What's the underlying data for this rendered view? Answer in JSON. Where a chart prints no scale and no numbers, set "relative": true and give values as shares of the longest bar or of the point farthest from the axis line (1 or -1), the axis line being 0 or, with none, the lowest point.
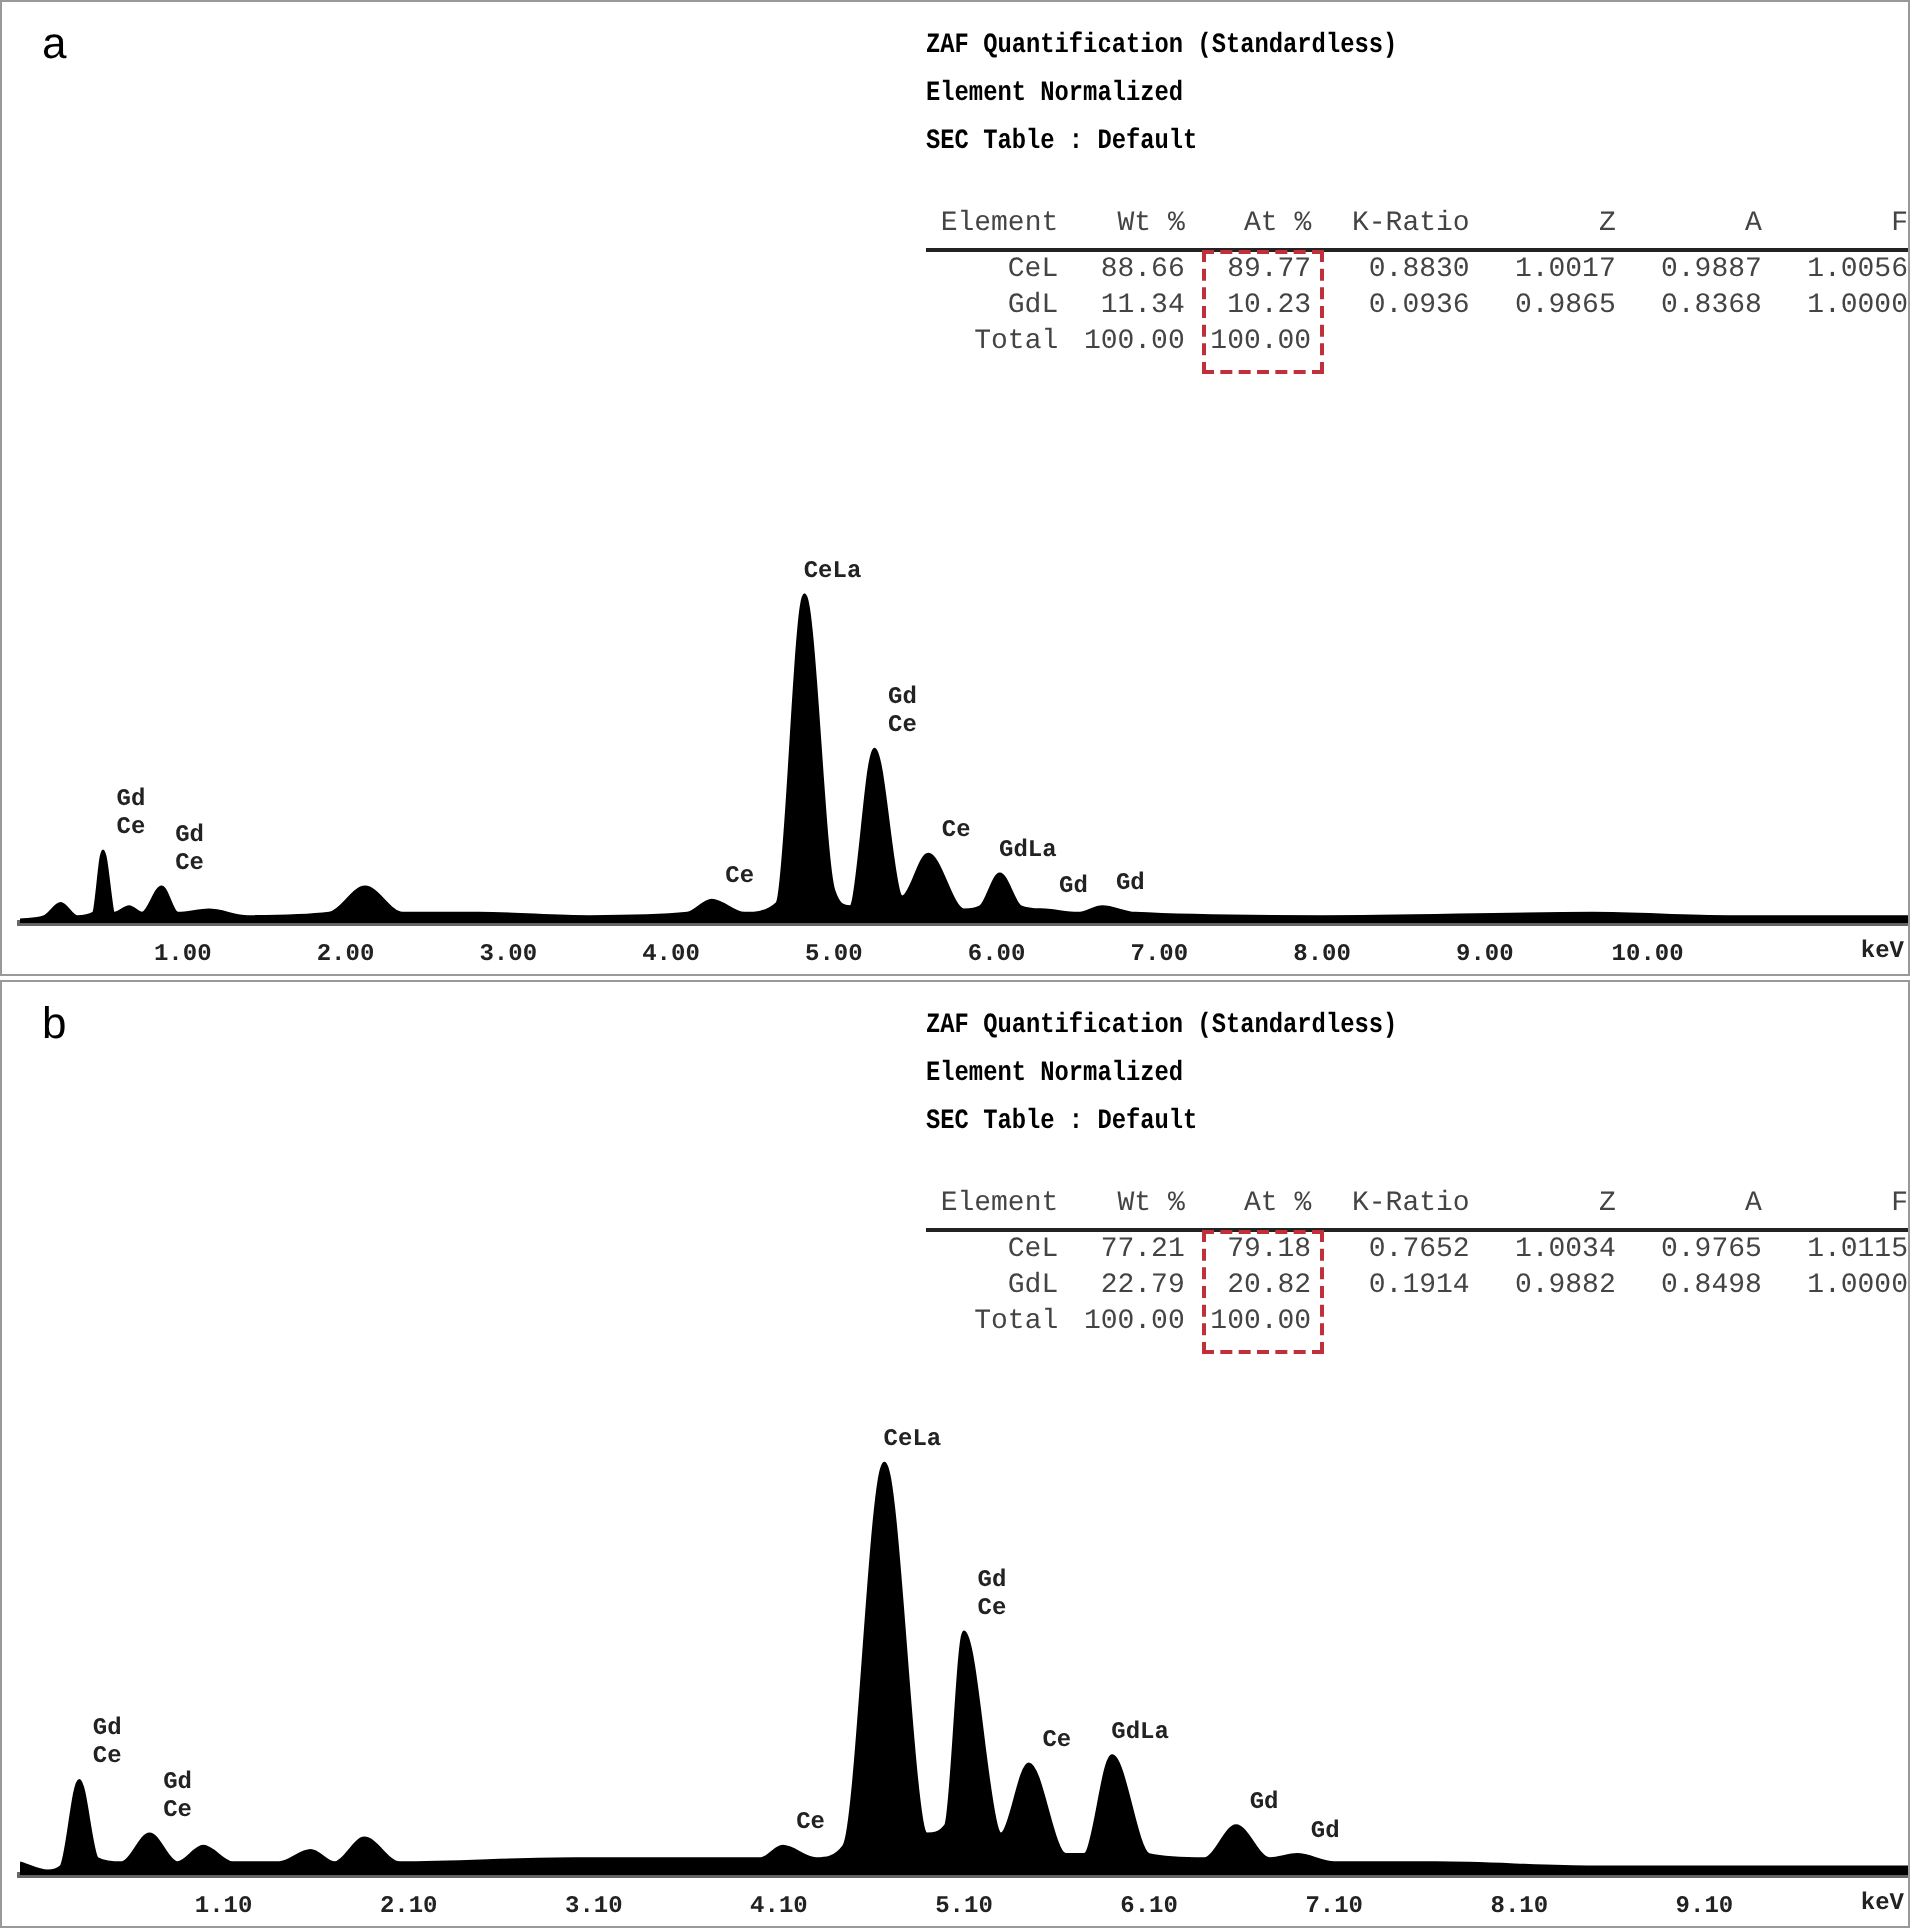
{
  "chart_data": [
    {
      "type": "area",
      "title": "a",
      "xlabel": "keV",
      "relative": true,
      "grid": false,
      "legend": false,
      "marker": "none",
      "xlim": [
        0,
        11.6
      ],
      "xticks": [
        {
          "value": 1,
          "label": "1.00"
        },
        {
          "value": 2,
          "label": "2.00"
        },
        {
          "value": 3,
          "label": "3.00"
        },
        {
          "value": 4,
          "label": "4.00"
        },
        {
          "value": 5,
          "label": "5.00"
        },
        {
          "value": 6,
          "label": "6.00"
        },
        {
          "value": 7,
          "label": "7.00"
        },
        {
          "value": 8,
          "label": "8.00"
        },
        {
          "value": 9,
          "label": "9.00"
        },
        {
          "value": 10,
          "label": "10.00"
        }
      ],
      "x": [
        0,
        0.15,
        0.25,
        0.35,
        0.45,
        0.51,
        0.58,
        0.67,
        0.75,
        0.87,
        0.97,
        1.16,
        1.4,
        1.9,
        2.12,
        2.35,
        2.82,
        3.5,
        4.1,
        4.25,
        4.45,
        4.65,
        4.82,
        5.0,
        5.1,
        5.25,
        5.42,
        5.58,
        5.8,
        5.9,
        6.02,
        6.15,
        6.3,
        6.5,
        6.65,
        6.85,
        8,
        9.66,
        10.5,
        11.6
      ],
      "series": [
        {
          "color": "#000000",
          "values": [
            0.01,
            0.02,
            0.06,
            0.02,
            0.03,
            0.22,
            0.03,
            0.05,
            0.03,
            0.11,
            0.03,
            0.04,
            0.02,
            0.03,
            0.11,
            0.03,
            0.03,
            0.02,
            0.03,
            0.07,
            0.03,
            0.06,
            1.0,
            0.1,
            0.05,
            0.53,
            0.08,
            0.21,
            0.04,
            0.05,
            0.15,
            0.05,
            0.04,
            0.03,
            0.05,
            0.03,
            0.02,
            0.03,
            0.02,
            0.02
          ]
        }
      ],
      "annotations": [
        "ZAF Quantification (Standardless)",
        "Element Normalized",
        "SEC Table : Default",
        "Element  Wt %  At %  K-Ratio  Z  A  F",
        "CeL  88.66  89.77  0.8830  1.0017  0.9887  1.0056",
        "GdL  11.34  10.23  0.0936  0.9865  0.8368  1.0000",
        "Total  100.00  100.00",
        {
          "text": "Ce",
          "x": 0.51,
          "y": 0.22
        },
        {
          "text": "Gd",
          "x": 0.51,
          "y": 0.22
        },
        {
          "text": "Ce",
          "x": 0.87,
          "y": 0.11
        },
        {
          "text": "Gd",
          "x": 0.87,
          "y": 0.11
        },
        {
          "text": "Ce",
          "x": 4.25,
          "y": 0.07
        },
        {
          "text": "CeLa",
          "x": 4.82,
          "y": 1.0
        },
        {
          "text": "Ce",
          "x": 5.25,
          "y": 0.53
        },
        {
          "text": "Gd",
          "x": 5.25,
          "y": 0.53
        },
        {
          "text": "Ce",
          "x": 5.58,
          "y": 0.21
        },
        {
          "text": "GdLa",
          "x": 6.02,
          "y": 0.15
        },
        {
          "text": "Gd",
          "x": 6.3,
          "y": 0.04
        },
        {
          "text": "Gd",
          "x": 6.65,
          "y": 0.05
        }
      ]
    },
    {
      "type": "area",
      "title": "b",
      "xlabel": "keV",
      "relative": true,
      "grid": false,
      "legend": false,
      "marker": "none",
      "xlim": [
        0,
        10.2
      ],
      "xticks": [
        {
          "value": 1.1,
          "label": "1.10"
        },
        {
          "value": 2.1,
          "label": "2.10"
        },
        {
          "value": 3.1,
          "label": "3.10"
        },
        {
          "value": 4.1,
          "label": "4.10"
        },
        {
          "value": 5.1,
          "label": "5.10"
        },
        {
          "value": 6.1,
          "label": "6.10"
        },
        {
          "value": 7.1,
          "label": "7.10"
        },
        {
          "value": 8.1,
          "label": "8.10"
        },
        {
          "value": 9.1,
          "label": "9.10"
        }
      ],
      "x": [
        0,
        0.15,
        0.22,
        0.32,
        0.42,
        0.55,
        0.7,
        0.85,
        0.99,
        1.15,
        1.4,
        1.57,
        1.7,
        1.86,
        2.05,
        3,
        4.0,
        4.12,
        4.3,
        4.45,
        4.67,
        4.9,
        5.0,
        5.1,
        5.3,
        5.45,
        5.65,
        5.75,
        5.9,
        6.1,
        6.4,
        6.57,
        6.75,
        6.9,
        7.1,
        7.65,
        8.5,
        10.2
      ],
      "series": [
        {
          "color": "#000000",
          "values": [
            0.03,
            0.01,
            0.02,
            0.23,
            0.04,
            0.03,
            0.1,
            0.03,
            0.07,
            0.03,
            0.03,
            0.06,
            0.03,
            0.09,
            0.03,
            0.04,
            0.04,
            0.07,
            0.04,
            0.07,
            1.0,
            0.1,
            0.12,
            0.59,
            0.1,
            0.27,
            0.05,
            0.05,
            0.29,
            0.05,
            0.04,
            0.12,
            0.04,
            0.05,
            0.03,
            0.03,
            0.02,
            0.02
          ]
        }
      ],
      "annotations": [
        "ZAF Quantification (Standardless)",
        "Element Normalized",
        "SEC Table : Default",
        "Element  Wt %  At %  K-Ratio  Z  A  F",
        "CeL  77.21  79.18  0.7652  1.0034  0.9765  1.0115",
        "GdL  22.79  20.82  0.1914  0.9882  0.8498  1.0000",
        "Total  100.00  100.00",
        {
          "text": "Ce",
          "x": 0.32,
          "y": 0.23
        },
        {
          "text": "Gd",
          "x": 0.32,
          "y": 0.23
        },
        {
          "text": "Ce",
          "x": 0.7,
          "y": 0.1
        },
        {
          "text": "Gd",
          "x": 0.7,
          "y": 0.1
        },
        {
          "text": "Ce",
          "x": 4.12,
          "y": 0.07
        },
        {
          "text": "CeLa",
          "x": 4.67,
          "y": 1.0
        },
        {
          "text": "Ce",
          "x": 5.1,
          "y": 0.59
        },
        {
          "text": "Gd",
          "x": 5.1,
          "y": 0.59
        },
        {
          "text": "Ce",
          "x": 5.45,
          "y": 0.27
        },
        {
          "text": "GdLa",
          "x": 5.9,
          "y": 0.29
        },
        {
          "text": "Gd",
          "x": 6.57,
          "y": 0.12
        },
        {
          "text": "Gd",
          "x": 6.9,
          "y": 0.05
        }
      ]
    }
  ]
}
